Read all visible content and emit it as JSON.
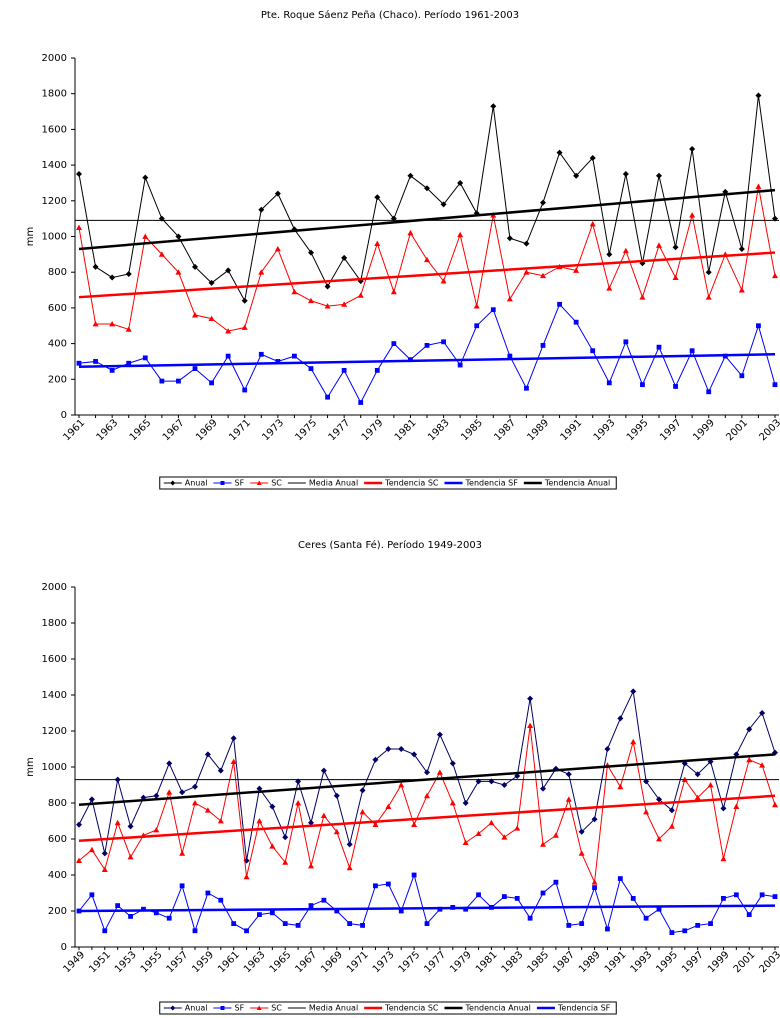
{
  "chart_data": [
    {
      "type": "line",
      "title": "Pte. Roque Sáenz Peña (Chaco). Período 1961-2003",
      "y_label": "mm",
      "categories": [
        "1961",
        null,
        "1963",
        null,
        "1965",
        null,
        "1967",
        null,
        "1969",
        null,
        "1971",
        null,
        "1973",
        null,
        "1975",
        null,
        "1977",
        null,
        "1979",
        null,
        "1981",
        null,
        "1983",
        null,
        "1985",
        null,
        "1987",
        null,
        "1989",
        null,
        "1991",
        null,
        "1993",
        null,
        "1995",
        null,
        "1997",
        null,
        "1999",
        null,
        "2001",
        null,
        "2003"
      ],
      "ylim": [
        0,
        2000
      ],
      "yticks": [
        0,
        200,
        400,
        600,
        800,
        1000,
        1200,
        1400,
        1600,
        1800,
        2000
      ],
      "series": [
        {
          "name": "Anual",
          "color": "#000000",
          "marker": "diamond",
          "values": [
            1350,
            830,
            770,
            790,
            1330,
            1100,
            1000,
            830,
            740,
            810,
            640,
            1150,
            1240,
            1040,
            910,
            720,
            880,
            750,
            1220,
            1100,
            1340,
            1270,
            1180,
            1300,
            1130,
            1730,
            990,
            960,
            1190,
            1470,
            1340,
            1440,
            900,
            1350,
            850,
            1340,
            940,
            1490,
            800,
            1250,
            930,
            1790,
            1100
          ]
        },
        {
          "name": "SF",
          "color": "#0000ff",
          "marker": "square",
          "values": [
            290,
            300,
            250,
            290,
            320,
            190,
            190,
            260,
            180,
            330,
            140,
            340,
            300,
            330,
            260,
            100,
            250,
            70,
            250,
            400,
            310,
            390,
            410,
            280,
            500,
            590,
            330,
            150,
            390,
            620,
            520,
            360,
            180,
            410,
            170,
            380,
            160,
            360,
            130,
            330,
            220,
            500,
            170
          ]
        },
        {
          "name": "SC",
          "color": "#ff0000",
          "marker": "triangle",
          "values": [
            1050,
            510,
            510,
            480,
            1000,
            900,
            800,
            560,
            540,
            470,
            490,
            800,
            930,
            690,
            640,
            610,
            620,
            670,
            960,
            690,
            1020,
            870,
            750,
            1010,
            610,
            1120,
            650,
            800,
            780,
            830,
            810,
            1070,
            710,
            920,
            660,
            950,
            770,
            1120,
            660,
            900,
            700,
            1280,
            780
          ]
        },
        {
          "name": "Media Anual",
          "color": "#000000",
          "value": 1090
        },
        {
          "name": "Tendencia SC",
          "color": "#ff0000",
          "ends": [
            660,
            910
          ]
        },
        {
          "name": "Tendencia SF",
          "color": "#0000ff",
          "ends": [
            270,
            340
          ]
        },
        {
          "name": "Tendencia Anual",
          "color": "#000000",
          "ends": [
            930,
            1260
          ]
        }
      ]
    },
    {
      "type": "line",
      "title": "Ceres (Santa Fé). Período 1949-2003",
      "y_label": "mm",
      "categories": [
        "1949",
        null,
        "1951",
        null,
        "1953",
        null,
        "1955",
        null,
        "1957",
        null,
        "1959",
        null,
        "1961",
        null,
        "1963",
        null,
        "1965",
        null,
        "1967",
        null,
        "1969",
        null,
        "1971",
        null,
        "1973",
        null,
        "1975",
        null,
        "1977",
        null,
        "1979",
        null,
        "1981",
        null,
        "1983",
        null,
        "1985",
        null,
        "1987",
        null,
        "1989",
        null,
        "1991",
        null,
        "1993",
        null,
        "1995",
        null,
        "1997",
        null,
        "1999",
        null,
        "2001",
        null,
        "2003"
      ],
      "ylim": [
        0,
        2000
      ],
      "yticks": [
        0,
        200,
        400,
        600,
        800,
        1000,
        1200,
        1400,
        1600,
        1800,
        2000
      ],
      "series": [
        {
          "name": "Anual",
          "color": "#000066",
          "marker": "diamond",
          "values": [
            680,
            820,
            520,
            930,
            670,
            830,
            840,
            1020,
            860,
            890,
            1070,
            980,
            1160,
            480,
            880,
            780,
            610,
            920,
            690,
            980,
            840,
            570,
            870,
            1040,
            1100,
            1100,
            1070,
            970,
            1180,
            1020,
            800,
            920,
            920,
            900,
            950,
            1380,
            880,
            990,
            960,
            640,
            710,
            1100,
            1270,
            1420,
            920,
            820,
            760,
            1020,
            960,
            1030,
            770,
            1070,
            1210,
            1300,
            1080
          ]
        },
        {
          "name": "SF",
          "color": "#0000ff",
          "marker": "square",
          "values": [
            200,
            290,
            90,
            230,
            170,
            210,
            190,
            160,
            340,
            90,
            300,
            260,
            130,
            90,
            180,
            190,
            130,
            120,
            230,
            260,
            200,
            130,
            120,
            340,
            350,
            200,
            400,
            130,
            210,
            220,
            210,
            290,
            220,
            280,
            270,
            160,
            300,
            360,
            120,
            130,
            330,
            100,
            380,
            270,
            160,
            210,
            80,
            90,
            120,
            130,
            270,
            290,
            180,
            290,
            280
          ]
        },
        {
          "name": "SC",
          "color": "#ff0000",
          "marker": "triangle",
          "values": [
            480,
            540,
            430,
            690,
            500,
            620,
            650,
            860,
            520,
            800,
            760,
            700,
            1030,
            390,
            700,
            560,
            470,
            800,
            450,
            730,
            640,
            440,
            750,
            680,
            780,
            900,
            680,
            840,
            970,
            800,
            580,
            630,
            690,
            610,
            660,
            1230,
            570,
            620,
            820,
            520,
            360,
            1010,
            890,
            1140,
            750,
            600,
            670,
            930,
            830,
            900,
            490,
            780,
            1040,
            1010,
            790
          ]
        },
        {
          "name": "Media Anual",
          "color": "#000000",
          "value": 930
        },
        {
          "name": "Tendencia SC",
          "color": "#ff0000",
          "ends": [
            590,
            840
          ]
        },
        {
          "name": "Tendencia Anual",
          "color": "#000000",
          "ends": [
            790,
            1070
          ]
        },
        {
          "name": "Tendencia SF",
          "color": "#0000ff",
          "ends": [
            200,
            230
          ]
        }
      ]
    }
  ]
}
